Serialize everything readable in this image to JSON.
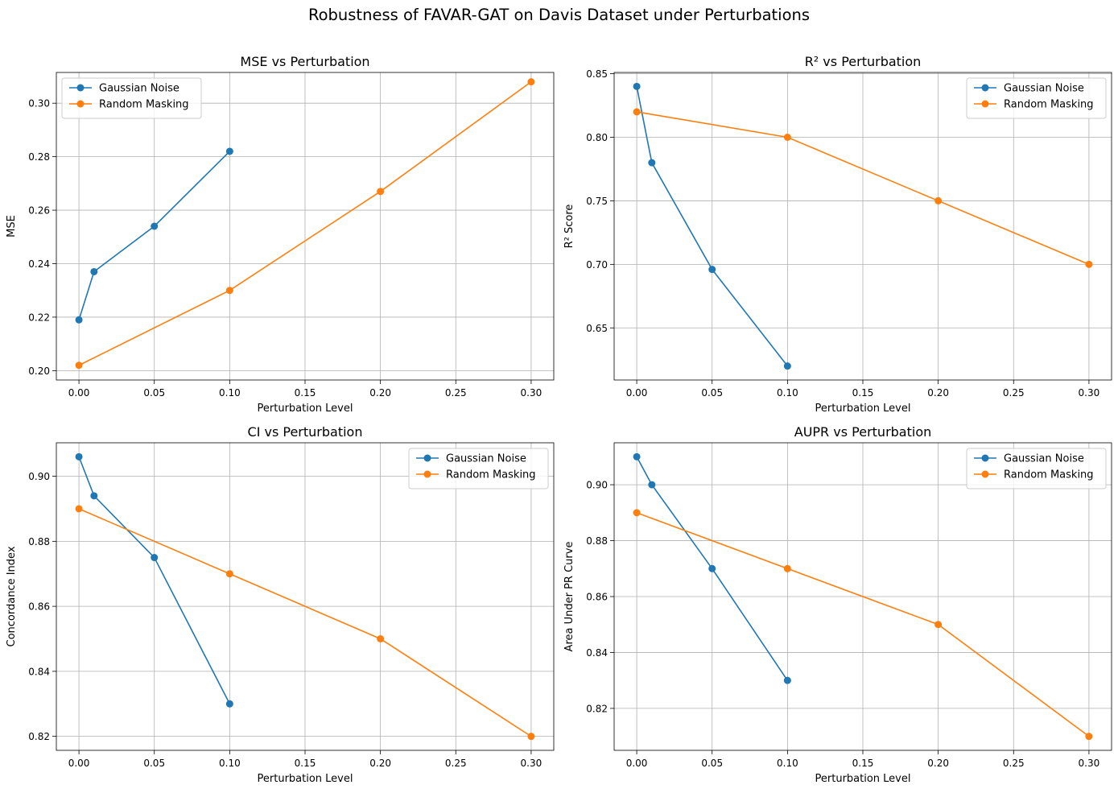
{
  "figure_title": "Robustness of FAVAR-GAT on Davis Dataset under Perturbations",
  "chart_data": [
    {
      "type": "line",
      "title": "MSE vs Perturbation",
      "xlabel": "Perturbation Level",
      "ylabel": "MSE",
      "xlim": [
        -0.015,
        0.315
      ],
      "ylim": [
        0.1965,
        0.3115
      ],
      "xticks": [
        0.0,
        0.05,
        0.1,
        0.15,
        0.2,
        0.25,
        0.3
      ],
      "xtick_labels": [
        "0.00",
        "0.05",
        "0.10",
        "0.15",
        "0.20",
        "0.25",
        "0.30"
      ],
      "yticks": [
        0.2,
        0.22,
        0.24,
        0.26,
        0.28,
        0.3
      ],
      "ytick_labels": [
        "0.20",
        "0.22",
        "0.24",
        "0.26",
        "0.28",
        "0.30"
      ],
      "grid": true,
      "legend": "upper left",
      "series": [
        {
          "name": "Gaussian Noise",
          "color": "#1f77b4",
          "marker": "circle",
          "x": [
            0.0,
            0.01,
            0.05,
            0.1
          ],
          "y": [
            0.219,
            0.237,
            0.254,
            0.282
          ]
        },
        {
          "name": "Random Masking",
          "color": "#ff7f0e",
          "marker": "circle",
          "x": [
            0.0,
            0.1,
            0.2,
            0.3
          ],
          "y": [
            0.202,
            0.23,
            0.267,
            0.308
          ]
        }
      ]
    },
    {
      "type": "line",
      "title": "R² vs Perturbation",
      "xlabel": "Perturbation Level",
      "ylabel": "R² Score",
      "xlim": [
        -0.015,
        0.315
      ],
      "ylim": [
        0.609,
        0.851
      ],
      "xticks": [
        0.0,
        0.05,
        0.1,
        0.15,
        0.2,
        0.25,
        0.3
      ],
      "xtick_labels": [
        "0.00",
        "0.05",
        "0.10",
        "0.15",
        "0.20",
        "0.25",
        "0.30"
      ],
      "yticks": [
        0.65,
        0.7,
        0.75,
        0.8,
        0.85
      ],
      "ytick_labels": [
        "0.65",
        "0.70",
        "0.75",
        "0.80",
        "0.85"
      ],
      "grid": true,
      "legend": "upper right",
      "series": [
        {
          "name": "Gaussian Noise",
          "color": "#1f77b4",
          "marker": "circle",
          "x": [
            0.0,
            0.01,
            0.05,
            0.1
          ],
          "y": [
            0.84,
            0.78,
            0.696,
            0.62
          ]
        },
        {
          "name": "Random Masking",
          "color": "#ff7f0e",
          "marker": "circle",
          "x": [
            0.0,
            0.1,
            0.2,
            0.3
          ],
          "y": [
            0.82,
            0.8,
            0.75,
            0.7
          ]
        }
      ]
    },
    {
      "type": "line",
      "title": "CI vs Perturbation",
      "xlabel": "Perturbation Level",
      "ylabel": "Concordance Index",
      "xlim": [
        -0.015,
        0.315
      ],
      "ylim": [
        0.8157,
        0.9103
      ],
      "xticks": [
        0.0,
        0.05,
        0.1,
        0.15,
        0.2,
        0.25,
        0.3
      ],
      "xtick_labels": [
        "0.00",
        "0.05",
        "0.10",
        "0.15",
        "0.20",
        "0.25",
        "0.30"
      ],
      "yticks": [
        0.82,
        0.84,
        0.86,
        0.88,
        0.9
      ],
      "ytick_labels": [
        "0.82",
        "0.84",
        "0.86",
        "0.88",
        "0.90"
      ],
      "grid": true,
      "legend": "upper right",
      "series": [
        {
          "name": "Gaussian Noise",
          "color": "#1f77b4",
          "marker": "circle",
          "x": [
            0.0,
            0.01,
            0.05,
            0.1
          ],
          "y": [
            0.906,
            0.894,
            0.875,
            0.83
          ]
        },
        {
          "name": "Random Masking",
          "color": "#ff7f0e",
          "marker": "circle",
          "x": [
            0.0,
            0.1,
            0.2,
            0.3
          ],
          "y": [
            0.89,
            0.87,
            0.85,
            0.82
          ]
        }
      ]
    },
    {
      "type": "line",
      "title": "AUPR vs Perturbation",
      "xlabel": "Perturbation Level",
      "ylabel": "Area Under PR Curve",
      "xlim": [
        -0.015,
        0.315
      ],
      "ylim": [
        0.805,
        0.915
      ],
      "xticks": [
        0.0,
        0.05,
        0.1,
        0.15,
        0.2,
        0.25,
        0.3
      ],
      "xtick_labels": [
        "0.00",
        "0.05",
        "0.10",
        "0.15",
        "0.20",
        "0.25",
        "0.30"
      ],
      "yticks": [
        0.82,
        0.84,
        0.86,
        0.88,
        0.9
      ],
      "ytick_labels": [
        "0.82",
        "0.84",
        "0.86",
        "0.88",
        "0.90"
      ],
      "grid": true,
      "legend": "upper right",
      "series": [
        {
          "name": "Gaussian Noise",
          "color": "#1f77b4",
          "marker": "circle",
          "x": [
            0.0,
            0.01,
            0.05,
            0.1
          ],
          "y": [
            0.91,
            0.9,
            0.87,
            0.83
          ]
        },
        {
          "name": "Random Masking",
          "color": "#ff7f0e",
          "marker": "circle",
          "x": [
            0.0,
            0.1,
            0.2,
            0.3
          ],
          "y": [
            0.89,
            0.87,
            0.85,
            0.81
          ]
        }
      ]
    }
  ]
}
